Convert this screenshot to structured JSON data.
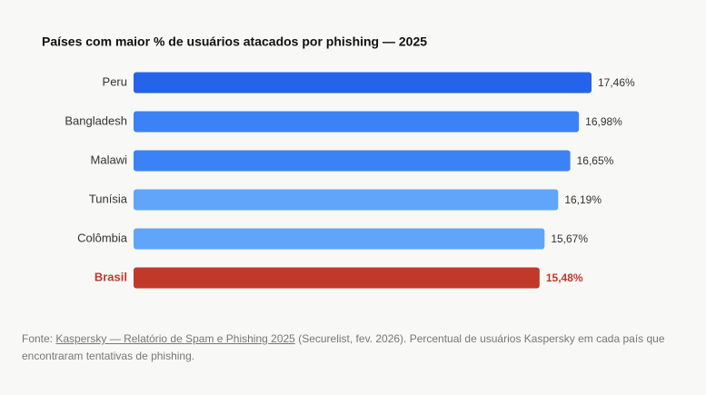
{
  "chart_data": {
    "type": "bar",
    "orientation": "horizontal",
    "title": "Países com maior % de usuários atacados por phishing — 2025",
    "categories": [
      "Peru",
      "Bangladesh",
      "Malawi",
      "Tunísia",
      "Colômbia",
      "Brasil"
    ],
    "values": [
      17.46,
      16.98,
      16.65,
      16.19,
      15.67,
      15.48
    ],
    "value_labels": [
      "17,46%",
      "16,98%",
      "16,65%",
      "16,19%",
      "15,67%",
      "15,48%"
    ],
    "colors": [
      "#2563eb",
      "#3b82f6",
      "#3b82f6",
      "#60a5fa",
      "#60a5fa",
      "#c0392b"
    ],
    "highlight_color": "#c0392b",
    "grid": false
  },
  "source": {
    "prefix": "Fonte:",
    "link": "Kaspersky — Relatório de Spam e Phishing 2025",
    "suffix": "(Securelist, fev. 2026). Percentual de usuários Kaspersky em cada país que encontraram tentativas de phishing."
  }
}
